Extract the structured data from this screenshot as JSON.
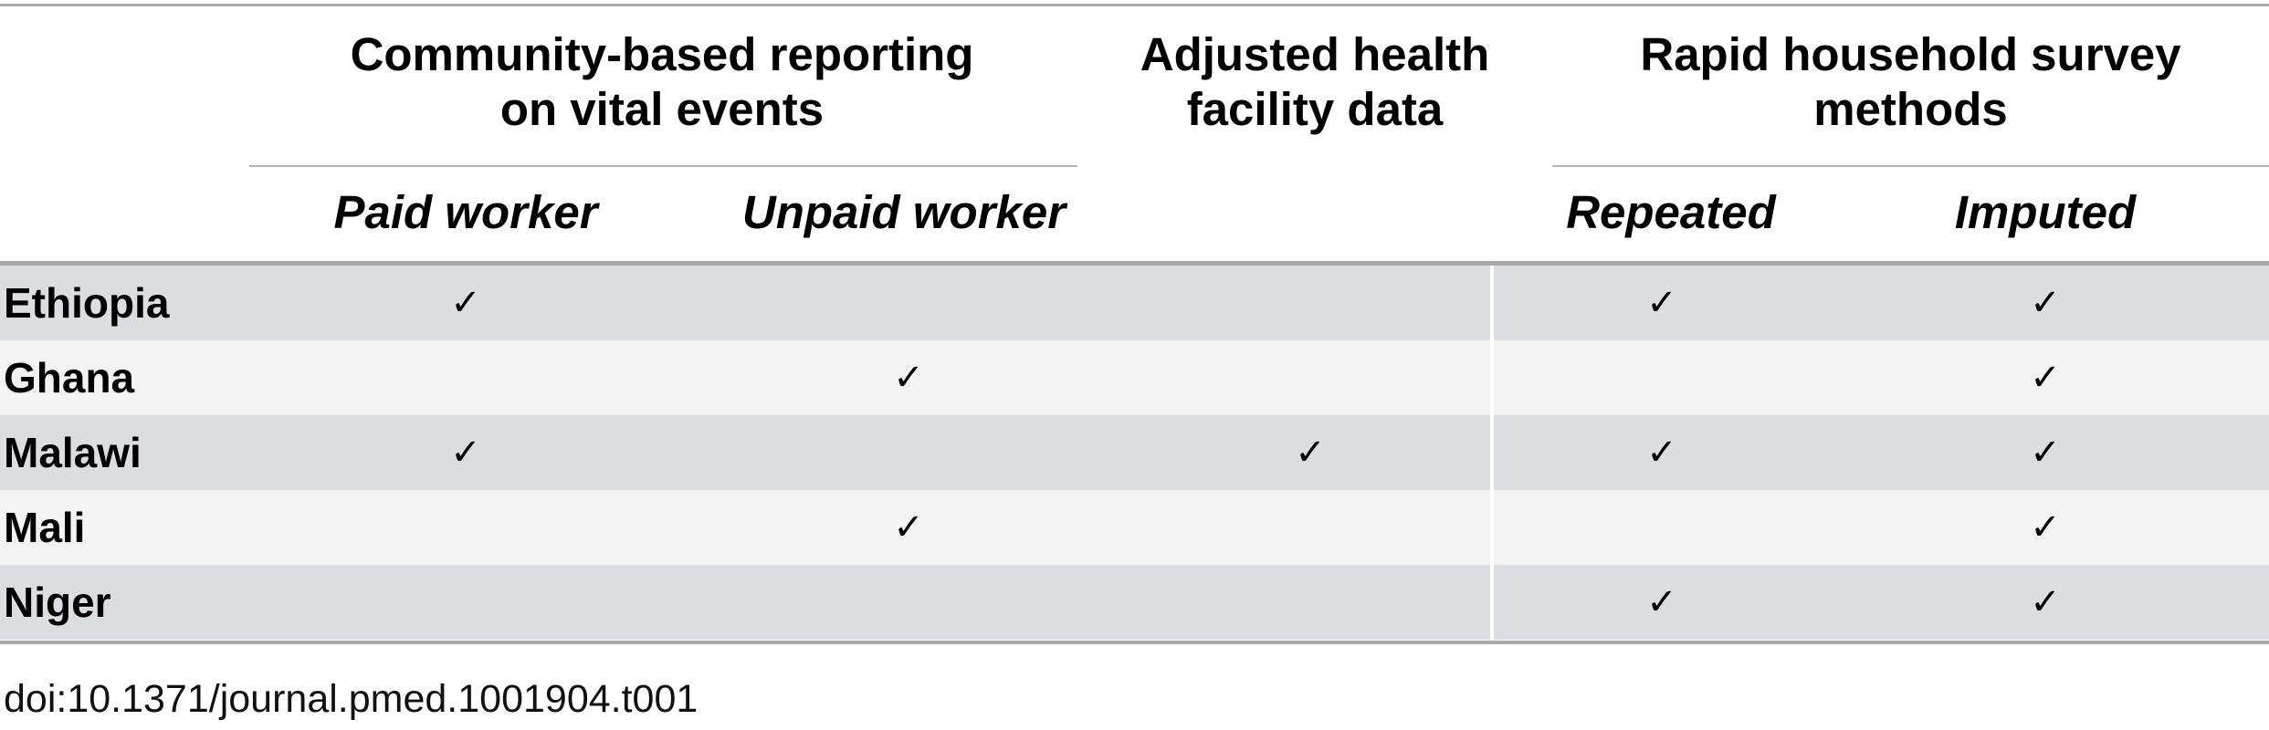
{
  "table": {
    "group_headers": [
      "Community-based reporting\non vital events",
      "Adjusted health\nfacility data",
      "Rapid household survey\nmethods"
    ],
    "sub_headers": [
      "Paid worker",
      "Unpaid worker",
      "Repeated",
      "Imputed"
    ],
    "check_symbol": "✓",
    "row_colors": [
      "#dcdde0",
      "#f3f3f4"
    ],
    "rows": [
      {
        "country": "Ethiopia",
        "paid_worker": true,
        "unpaid_worker": false,
        "health_facility": false,
        "repeated": true,
        "imputed": true
      },
      {
        "country": "Ghana",
        "paid_worker": false,
        "unpaid_worker": true,
        "health_facility": false,
        "repeated": false,
        "imputed": true
      },
      {
        "country": "Malawi",
        "paid_worker": true,
        "unpaid_worker": false,
        "health_facility": true,
        "repeated": true,
        "imputed": true
      },
      {
        "country": "Mali",
        "paid_worker": false,
        "unpaid_worker": true,
        "health_facility": false,
        "repeated": false,
        "imputed": true
      },
      {
        "country": "Niger",
        "paid_worker": false,
        "unpaid_worker": false,
        "health_facility": false,
        "repeated": true,
        "imputed": true
      }
    ]
  },
  "doi": "doi:10.1371/journal.pmed.1001904.t001"
}
